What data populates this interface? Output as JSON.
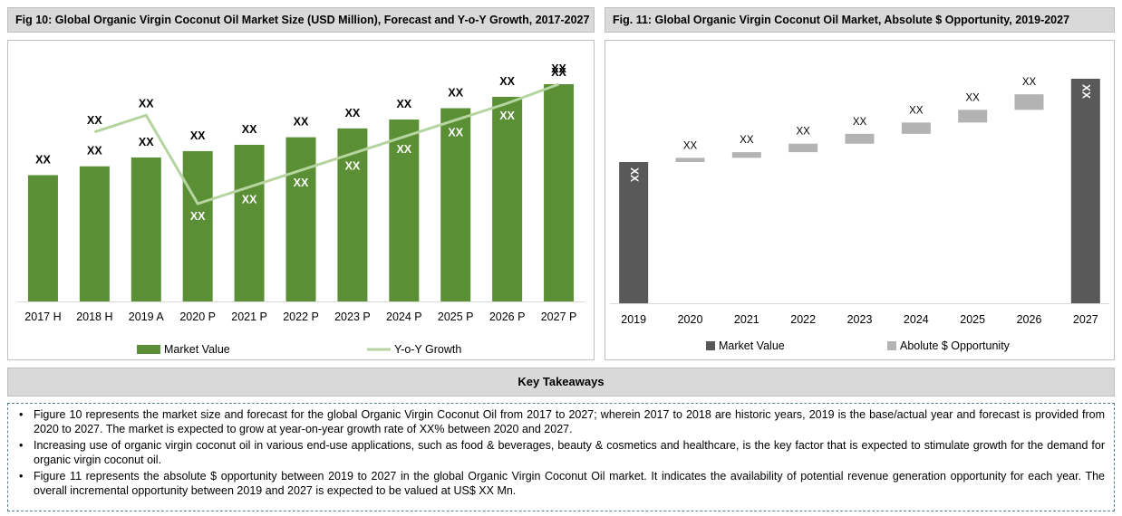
{
  "fig10": {
    "title": "Fig 10: Global Organic Virgin Coconut Oil Market Size (USD Million), Forecast and Y-o-Y Growth, 2017-2027",
    "legend": {
      "bar_label": "Market Value",
      "line_label": "Y-o-Y Growth"
    },
    "colors": {
      "bar": "#5b8f35",
      "line": "#b5d4a0"
    },
    "chart_data": {
      "type": "bar",
      "categories": [
        "2017 H",
        "2018 H",
        "2019 A",
        "2020 P",
        "2021 P",
        "2022 P",
        "2023 P",
        "2024 P",
        "2025 P",
        "2026 P",
        "2027 P"
      ],
      "series": [
        {
          "name": "Market Value",
          "type": "bar",
          "values": [
            100,
            107,
            114,
            119,
            124,
            130,
            137,
            144,
            153,
            162,
            172
          ],
          "labels": [
            "XX",
            "XX",
            "XX",
            "XX",
            "XX",
            "XX",
            "XX",
            "XX",
            "XX",
            "XX",
            "XX"
          ]
        },
        {
          "name": "Y-o-Y Growth",
          "type": "line",
          "values": [
            null,
            7.0,
            7.7,
            4.0,
            4.7,
            5.4,
            6.1,
            6.8,
            7.5,
            8.2,
            9.0
          ],
          "labels": [
            "",
            "XX",
            "XX",
            "XX",
            "XX",
            "XX",
            "XX",
            "XX",
            "XX",
            "XX",
            "XX"
          ]
        }
      ],
      "legend_position": "bottom",
      "grid": false
    }
  },
  "fig11": {
    "title": "Fig. 11: Global Organic Virgin Coconut Oil Market, Absolute $ Opportunity, 2019-2027",
    "legend": {
      "market_label": "Market Value",
      "opp_label": "Abolute $ Opportunity"
    },
    "colors": {
      "market": "#595959",
      "opportunity": "#b3b3b3"
    },
    "chart_data": {
      "type": "bar",
      "subtype": "waterfall",
      "categories": [
        "2019",
        "2020",
        "2021",
        "2022",
        "2023",
        "2024",
        "2025",
        "2026",
        "2027"
      ],
      "start_value": 100,
      "increments": [
        null,
        3,
        4,
        6,
        7,
        8,
        9,
        11,
        null
      ],
      "end_value": 159,
      "labels": [
        "XX",
        "XX",
        "XX",
        "XX",
        "XX",
        "XX",
        "XX",
        "XX",
        "XX"
      ],
      "legend_position": "bottom",
      "grid": false
    }
  },
  "takeaways": {
    "title": "Key Takeaways",
    "items": [
      "Figure 10 represents the market size and forecast for the global Organic Virgin Coconut Oil from 2017 to 2027; wherein 2017 to 2018 are historic years, 2019 is the base/actual year and forecast is provided from 2020 to 2027. The market is expected to grow at year-on-year growth rate of XX% between 2020 and 2027.",
      "Increasing use of organic virgin coconut oil in various end-use applications, such as food & beverages, beauty & cosmetics and healthcare, is the key factor that is expected to stimulate growth for the demand for organic virgin coconut oil.",
      "Figure 11 represents the absolute $ opportunity between 2019 to 2027 in the global Organic Virgin Coconut Oil market. It indicates the availability of potential revenue generation opportunity for each year. The overall incremental opportunity between 2019 and 2027 is expected to be valued at US$ XX Mn."
    ]
  }
}
